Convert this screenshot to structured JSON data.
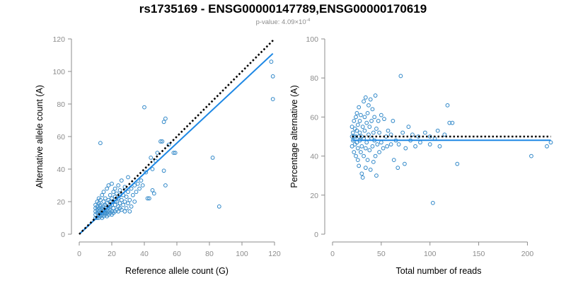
{
  "title": "rs1735169 - ENSG00000147789,ENSG00000170619",
  "subtitle": {
    "prefix": "p-value: 4.09×10",
    "exponent": "-4"
  },
  "colors": {
    "points": "#2f87c8",
    "fit": "#1e88e5",
    "reference": "#000000",
    "axis": "#8c8c8c"
  },
  "chart_data": [
    {
      "type": "scatter",
      "title": "",
      "xlabel": "Reference allele count (G)",
      "ylabel": "Alternative allele count (A)",
      "xlim": [
        0,
        120
      ],
      "ylim": [
        0,
        120
      ],
      "xticks": [
        0,
        20,
        40,
        60,
        80,
        100,
        120
      ],
      "yticks": [
        0,
        20,
        40,
        60,
        80,
        100,
        120
      ],
      "grid": false,
      "points": [
        [
          10,
          10
        ],
        [
          10,
          12
        ],
        [
          10,
          14
        ],
        [
          10,
          16
        ],
        [
          10,
          18
        ],
        [
          11,
          10
        ],
        [
          11,
          13
        ],
        [
          11,
          15
        ],
        [
          11,
          17
        ],
        [
          11,
          20
        ],
        [
          12,
          10
        ],
        [
          12,
          12
        ],
        [
          12,
          14
        ],
        [
          12,
          16
        ],
        [
          12,
          19
        ],
        [
          12,
          22
        ],
        [
          13,
          11
        ],
        [
          13,
          13
        ],
        [
          13,
          15
        ],
        [
          13,
          18
        ],
        [
          13,
          21
        ],
        [
          13,
          56
        ],
        [
          14,
          10
        ],
        [
          14,
          12
        ],
        [
          14,
          14
        ],
        [
          14,
          16
        ],
        [
          14,
          24
        ],
        [
          15,
          11
        ],
        [
          15,
          13
        ],
        [
          15,
          15
        ],
        [
          15,
          17
        ],
        [
          15,
          20
        ],
        [
          15,
          26
        ],
        [
          16,
          12
        ],
        [
          16,
          14
        ],
        [
          16,
          16
        ],
        [
          16,
          18
        ],
        [
          16,
          22
        ],
        [
          17,
          11
        ],
        [
          17,
          13
        ],
        [
          17,
          15
        ],
        [
          17,
          19
        ],
        [
          17,
          28
        ],
        [
          18,
          12
        ],
        [
          18,
          14
        ],
        [
          18,
          16
        ],
        [
          18,
          21
        ],
        [
          18,
          30
        ],
        [
          19,
          13
        ],
        [
          19,
          15
        ],
        [
          19,
          17
        ],
        [
          19,
          24
        ],
        [
          20,
          12
        ],
        [
          20,
          14
        ],
        [
          20,
          18
        ],
        [
          20,
          22
        ],
        [
          20,
          31
        ],
        [
          21,
          13
        ],
        [
          21,
          16
        ],
        [
          21,
          20
        ],
        [
          21,
          26
        ],
        [
          22,
          14
        ],
        [
          22,
          18
        ],
        [
          22,
          23
        ],
        [
          22,
          28
        ],
        [
          23,
          15
        ],
        [
          23,
          20
        ],
        [
          23,
          25
        ],
        [
          24,
          14
        ],
        [
          24,
          17
        ],
        [
          24,
          22
        ],
        [
          24,
          30
        ],
        [
          25,
          16
        ],
        [
          25,
          19
        ],
        [
          25,
          27
        ],
        [
          26,
          15
        ],
        [
          26,
          21
        ],
        [
          26,
          33
        ],
        [
          27,
          18
        ],
        [
          27,
          24
        ],
        [
          28,
          14
        ],
        [
          28,
          20
        ],
        [
          28,
          29
        ],
        [
          29,
          16
        ],
        [
          29,
          23
        ],
        [
          30,
          19
        ],
        [
          30,
          26
        ],
        [
          30,
          35
        ],
        [
          31,
          14
        ],
        [
          31,
          21
        ],
        [
          32,
          17
        ],
        [
          32,
          28
        ],
        [
          33,
          24
        ],
        [
          34,
          20
        ],
        [
          34,
          30
        ],
        [
          35,
          26
        ],
        [
          36,
          31
        ],
        [
          37,
          28
        ],
        [
          38,
          33
        ],
        [
          39,
          30
        ],
        [
          40,
          78
        ],
        [
          41,
          38
        ],
        [
          42,
          22
        ],
        [
          43,
          22
        ],
        [
          44,
          47
        ],
        [
          45,
          27
        ],
        [
          45,
          40
        ],
        [
          46,
          25
        ],
        [
          47,
          45
        ],
        [
          48,
          50
        ],
        [
          50,
          57
        ],
        [
          51,
          57
        ],
        [
          52,
          39
        ],
        [
          52,
          69
        ],
        [
          53,
          30
        ],
        [
          53,
          71
        ],
        [
          55,
          55
        ],
        [
          58,
          50
        ],
        [
          59,
          50
        ],
        [
          82,
          47
        ],
        [
          86,
          17
        ],
        [
          118,
          106
        ],
        [
          119,
          83
        ],
        [
          119,
          97
        ],
        [
          14,
          13
        ],
        [
          16,
          13
        ],
        [
          19,
          20
        ],
        [
          13,
          17
        ],
        [
          22,
          20
        ],
        [
          25,
          24
        ]
      ],
      "fit_line": {
        "x": [
          0,
          119
        ],
        "y": [
          0,
          111
        ]
      },
      "reference_line": {
        "x": [
          0,
          120
        ],
        "y": [
          0,
          120
        ]
      }
    },
    {
      "type": "scatter",
      "title": "",
      "xlabel": "Total number of reads",
      "ylabel": "Percentage alternative (A)",
      "xlim": [
        0,
        220
      ],
      "ylim": [
        0,
        100
      ],
      "xticks": [
        0,
        50,
        100,
        150,
        200
      ],
      "yticks": [
        0,
        20,
        40,
        60,
        80,
        100
      ],
      "grid": false,
      "points": [
        [
          20,
          50
        ],
        [
          20,
          55
        ],
        [
          20,
          45
        ],
        [
          21,
          52
        ],
        [
          21,
          48
        ],
        [
          22,
          58
        ],
        [
          22,
          42
        ],
        [
          22,
          50
        ],
        [
          23,
          54
        ],
        [
          23,
          46
        ],
        [
          24,
          60
        ],
        [
          24,
          40
        ],
        [
          24,
          50
        ],
        [
          25,
          53
        ],
        [
          25,
          47
        ],
        [
          25,
          62
        ],
        [
          26,
          38
        ],
        [
          26,
          56
        ],
        [
          26,
          44
        ],
        [
          27,
          50
        ],
        [
          27,
          65
        ],
        [
          27,
          35
        ],
        [
          28,
          52
        ],
        [
          28,
          48
        ],
        [
          28,
          58
        ],
        [
          29,
          42
        ],
        [
          29,
          61
        ],
        [
          30,
          31
        ],
        [
          30,
          50
        ],
        [
          30,
          45
        ],
        [
          31,
          55
        ],
        [
          31,
          29
        ],
        [
          32,
          68
        ],
        [
          32,
          49
        ],
        [
          32,
          40
        ],
        [
          33,
          53
        ],
        [
          33,
          60
        ],
        [
          34,
          70
        ],
        [
          34,
          44
        ],
        [
          34,
          34
        ],
        [
          35,
          57
        ],
        [
          35,
          47
        ],
        [
          36,
          62
        ],
        [
          36,
          38
        ],
        [
          37,
          51
        ],
        [
          37,
          66
        ],
        [
          38,
          43
        ],
        [
          38,
          55
        ],
        [
          39,
          69
        ],
        [
          39,
          33
        ],
        [
          40,
          49
        ],
        [
          40,
          58
        ],
        [
          41,
          45
        ],
        [
          41,
          64
        ],
        [
          42,
          52
        ],
        [
          42,
          37
        ],
        [
          43,
          60
        ],
        [
          43,
          48
        ],
        [
          44,
          71
        ],
        [
          44,
          40
        ],
        [
          45,
          54
        ],
        [
          45,
          30
        ],
        [
          46,
          46
        ],
        [
          47,
          58
        ],
        [
          48,
          42
        ],
        [
          48,
          52
        ],
        [
          50,
          61
        ],
        [
          50,
          47
        ],
        [
          52,
          44
        ],
        [
          53,
          59
        ],
        [
          55,
          50
        ],
        [
          56,
          45
        ],
        [
          57,
          53
        ],
        [
          60,
          46
        ],
        [
          62,
          58
        ],
        [
          63,
          38
        ],
        [
          65,
          48
        ],
        [
          67,
          34
        ],
        [
          68,
          46
        ],
        [
          70,
          81
        ],
        [
          72,
          52
        ],
        [
          74,
          36
        ],
        [
          75,
          44
        ],
        [
          78,
          55
        ],
        [
          80,
          48
        ],
        [
          82,
          51
        ],
        [
          85,
          45
        ],
        [
          88,
          50
        ],
        [
          90,
          47
        ],
        [
          95,
          52
        ],
        [
          100,
          46
        ],
        [
          103,
          16
        ],
        [
          105,
          49
        ],
        [
          108,
          53
        ],
        [
          110,
          45
        ],
        [
          115,
          51
        ],
        [
          118,
          66
        ],
        [
          120,
          57
        ],
        [
          123,
          57
        ],
        [
          128,
          36
        ],
        [
          204,
          40
        ],
        [
          220,
          45
        ],
        [
          224,
          47
        ],
        [
          100,
          50
        ],
        [
          60,
          51
        ]
      ],
      "fit_line": {
        "x": [
          20,
          224
        ],
        "y": [
          48.1,
          48.1
        ]
      },
      "reference_line": {
        "x": [
          20,
          224
        ],
        "y": [
          50,
          50
        ]
      }
    }
  ]
}
